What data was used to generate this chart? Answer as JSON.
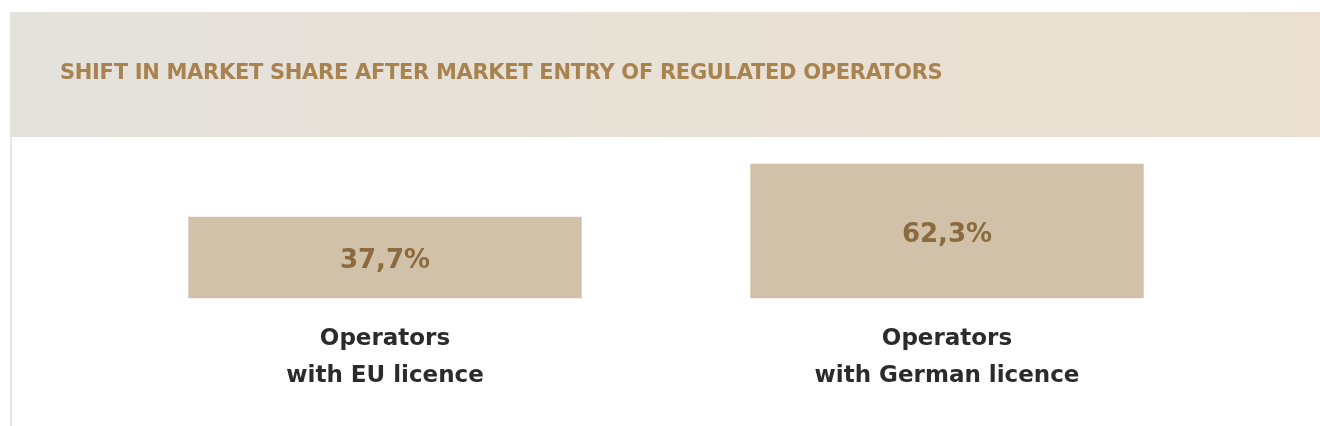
{
  "chart_data": {
    "type": "bar",
    "title": "SHIFT IN MARKET SHARE AFTER MARKET ENTRY OF REGULATED OPERATORS",
    "categories": [
      "Operators\nwith EU licence",
      "Operators\nwith German licence"
    ],
    "values": [
      37.7,
      62.3
    ],
    "value_labels": [
      "37,7%",
      "62,3%"
    ],
    "color": "#d1c1a8",
    "grid": false,
    "legend": false,
    "tick_labels": "x"
  }
}
